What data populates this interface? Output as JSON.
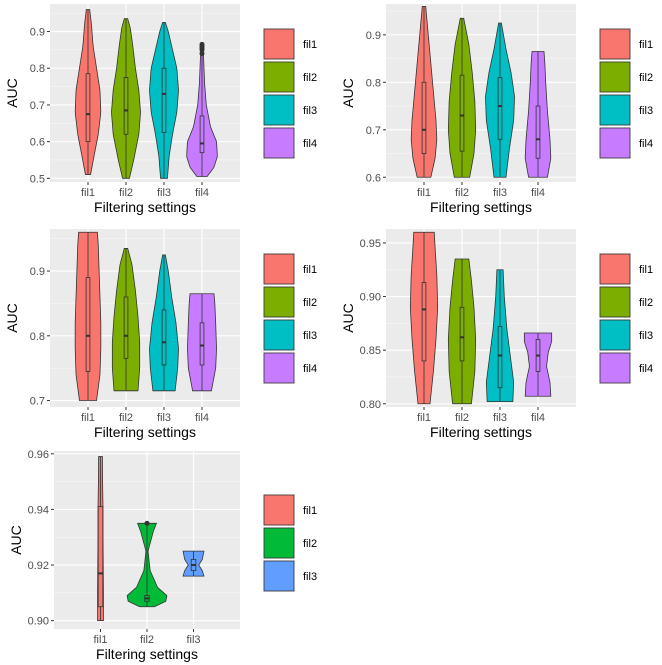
{
  "chart_data": [
    {
      "type": "violin",
      "xlabel": "Filtering settings",
      "ylabel": "AUC",
      "ylim": [
        0.49,
        0.975
      ],
      "yticks": [
        "0.5",
        "0.6",
        "0.7",
        "0.8",
        "0.9"
      ],
      "categories": [
        "fil1",
        "fil2",
        "fil3",
        "fil4"
      ],
      "legend": [
        "fil1",
        "fil2",
        "fil3",
        "fil4"
      ],
      "colors": [
        "#F8766D",
        "#7CAE00",
        "#00BFC4",
        "#C77CFF"
      ],
      "grid": true,
      "legend_position": "right",
      "series": [
        {
          "name": "fil1",
          "min": 0.51,
          "q1": 0.6,
          "median": 0.675,
          "q3": 0.785,
          "max": 0.96,
          "density": [
            [
              0.51,
              0.15
            ],
            [
              0.56,
              0.35
            ],
            [
              0.62,
              0.6
            ],
            [
              0.68,
              0.75
            ],
            [
              0.74,
              0.7
            ],
            [
              0.8,
              0.5
            ],
            [
              0.86,
              0.3
            ],
            [
              0.92,
              0.2
            ],
            [
              0.96,
              0.1
            ]
          ]
        },
        {
          "name": "fil2",
          "min": 0.5,
          "q1": 0.62,
          "median": 0.685,
          "q3": 0.775,
          "max": 0.935,
          "density": [
            [
              0.5,
              0.2
            ],
            [
              0.55,
              0.45
            ],
            [
              0.62,
              0.75
            ],
            [
              0.68,
              0.85
            ],
            [
              0.74,
              0.75
            ],
            [
              0.8,
              0.55
            ],
            [
              0.86,
              0.4
            ],
            [
              0.91,
              0.25
            ],
            [
              0.935,
              0.1
            ]
          ]
        },
        {
          "name": "fil3",
          "min": 0.5,
          "q1": 0.625,
          "median": 0.73,
          "q3": 0.8,
          "max": 0.925,
          "density": [
            [
              0.5,
              0.2
            ],
            [
              0.56,
              0.3
            ],
            [
              0.62,
              0.5
            ],
            [
              0.68,
              0.75
            ],
            [
              0.74,
              0.85
            ],
            [
              0.8,
              0.75
            ],
            [
              0.85,
              0.5
            ],
            [
              0.9,
              0.25
            ],
            [
              0.925,
              0.08
            ]
          ]
        },
        {
          "name": "fil4",
          "min": 0.505,
          "q1": 0.57,
          "median": 0.595,
          "q3": 0.67,
          "max": 0.865,
          "density": [
            [
              0.505,
              0.3
            ],
            [
              0.53,
              0.7
            ],
            [
              0.56,
              0.9
            ],
            [
              0.6,
              0.85
            ],
            [
              0.64,
              0.5
            ],
            [
              0.7,
              0.25
            ],
            [
              0.76,
              0.15
            ],
            [
              0.82,
              0.1
            ],
            [
              0.865,
              0.06
            ]
          ],
          "outliers": [
            0.84,
            0.85,
            0.855,
            0.86,
            0.865
          ]
        }
      ]
    },
    {
      "type": "violin",
      "xlabel": "Filtering settings",
      "ylabel": "AUC",
      "ylim": [
        0.59,
        0.965
      ],
      "yticks": [
        "0.6",
        "0.7",
        "0.8",
        "0.9"
      ],
      "categories": [
        "fil1",
        "fil2",
        "fil3",
        "fil4"
      ],
      "legend": [
        "fil1",
        "fil2",
        "fil3",
        "fil4"
      ],
      "colors": [
        "#F8766D",
        "#7CAE00",
        "#00BFC4",
        "#C77CFF"
      ],
      "grid": true,
      "legend_position": "right",
      "series": [
        {
          "name": "fil1",
          "min": 0.6,
          "q1": 0.65,
          "median": 0.7,
          "q3": 0.8,
          "max": 0.96,
          "density": [
            [
              0.6,
              0.4
            ],
            [
              0.64,
              0.65
            ],
            [
              0.68,
              0.75
            ],
            [
              0.72,
              0.7
            ],
            [
              0.78,
              0.55
            ],
            [
              0.84,
              0.4
            ],
            [
              0.9,
              0.25
            ],
            [
              0.96,
              0.1
            ]
          ]
        },
        {
          "name": "fil2",
          "min": 0.6,
          "q1": 0.655,
          "median": 0.73,
          "q3": 0.815,
          "max": 0.935,
          "density": [
            [
              0.6,
              0.45
            ],
            [
              0.65,
              0.7
            ],
            [
              0.7,
              0.8
            ],
            [
              0.76,
              0.75
            ],
            [
              0.82,
              0.6
            ],
            [
              0.88,
              0.4
            ],
            [
              0.935,
              0.1
            ]
          ]
        },
        {
          "name": "fil3",
          "min": 0.6,
          "q1": 0.68,
          "median": 0.75,
          "q3": 0.81,
          "max": 0.925,
          "density": [
            [
              0.6,
              0.35
            ],
            [
              0.66,
              0.55
            ],
            [
              0.72,
              0.8
            ],
            [
              0.77,
              0.85
            ],
            [
              0.82,
              0.65
            ],
            [
              0.87,
              0.35
            ],
            [
              0.925,
              0.08
            ]
          ]
        },
        {
          "name": "fil4",
          "min": 0.6,
          "q1": 0.64,
          "median": 0.68,
          "q3": 0.75,
          "max": 0.865,
          "density": [
            [
              0.6,
              0.55
            ],
            [
              0.64,
              0.75
            ],
            [
              0.68,
              0.7
            ],
            [
              0.74,
              0.55
            ],
            [
              0.8,
              0.45
            ],
            [
              0.84,
              0.4
            ],
            [
              0.865,
              0.35
            ]
          ]
        }
      ]
    },
    {
      "type": "violin",
      "xlabel": "Filtering settings",
      "ylabel": "AUC",
      "ylim": [
        0.69,
        0.965
      ],
      "yticks": [
        "0.7",
        "0.8",
        "0.9"
      ],
      "categories": [
        "fil1",
        "fil2",
        "fil3",
        "fil4"
      ],
      "legend": [
        "fil1",
        "fil2",
        "fil3",
        "fil4"
      ],
      "colors": [
        "#F8766D",
        "#7CAE00",
        "#00BFC4",
        "#C77CFF"
      ],
      "grid": true,
      "legend_position": "right",
      "series": [
        {
          "name": "fil1",
          "min": 0.7,
          "q1": 0.745,
          "median": 0.8,
          "q3": 0.89,
          "max": 0.96,
          "density": [
            [
              0.7,
              0.5
            ],
            [
              0.74,
              0.7
            ],
            [
              0.78,
              0.75
            ],
            [
              0.82,
              0.75
            ],
            [
              0.86,
              0.7
            ],
            [
              0.9,
              0.65
            ],
            [
              0.94,
              0.6
            ],
            [
              0.96,
              0.55
            ]
          ]
        },
        {
          "name": "fil2",
          "min": 0.715,
          "q1": 0.765,
          "median": 0.8,
          "q3": 0.86,
          "max": 0.935,
          "density": [
            [
              0.715,
              0.7
            ],
            [
              0.75,
              0.8
            ],
            [
              0.79,
              0.8
            ],
            [
              0.83,
              0.7
            ],
            [
              0.87,
              0.55
            ],
            [
              0.91,
              0.35
            ],
            [
              0.935,
              0.1
            ]
          ]
        },
        {
          "name": "fil3",
          "min": 0.715,
          "q1": 0.755,
          "median": 0.79,
          "q3": 0.84,
          "max": 0.925,
          "density": [
            [
              0.715,
              0.65
            ],
            [
              0.75,
              0.8
            ],
            [
              0.78,
              0.85
            ],
            [
              0.82,
              0.7
            ],
            [
              0.86,
              0.45
            ],
            [
              0.9,
              0.25
            ],
            [
              0.925,
              0.08
            ]
          ]
        },
        {
          "name": "fil4",
          "min": 0.715,
          "q1": 0.755,
          "median": 0.785,
          "q3": 0.82,
          "max": 0.865,
          "density": [
            [
              0.715,
              0.55
            ],
            [
              0.75,
              0.8
            ],
            [
              0.78,
              0.85
            ],
            [
              0.82,
              0.8
            ],
            [
              0.85,
              0.75
            ],
            [
              0.865,
              0.7
            ]
          ]
        }
      ]
    },
    {
      "type": "violin",
      "xlabel": "Filtering settings",
      "ylabel": "AUC",
      "ylim": [
        0.797,
        0.963
      ],
      "yticks": [
        "0.80",
        "0.85",
        "0.90",
        "0.95"
      ],
      "categories": [
        "fil1",
        "fil2",
        "fil3",
        "fil4"
      ],
      "legend": [
        "fil1",
        "fil2",
        "fil3",
        "fil4"
      ],
      "colors": [
        "#F8766D",
        "#7CAE00",
        "#00BFC4",
        "#C77CFF"
      ],
      "grid": true,
      "legend_position": "right",
      "series": [
        {
          "name": "fil1",
          "min": 0.8,
          "q1": 0.84,
          "median": 0.888,
          "q3": 0.913,
          "max": 0.96,
          "density": [
            [
              0.8,
              0.35
            ],
            [
              0.83,
              0.55
            ],
            [
              0.86,
              0.7
            ],
            [
              0.89,
              0.8
            ],
            [
              0.92,
              0.75
            ],
            [
              0.945,
              0.65
            ],
            [
              0.96,
              0.6
            ]
          ]
        },
        {
          "name": "fil2",
          "min": 0.8,
          "q1": 0.84,
          "median": 0.862,
          "q3": 0.89,
          "max": 0.935,
          "density": [
            [
              0.8,
              0.55
            ],
            [
              0.83,
              0.75
            ],
            [
              0.86,
              0.8
            ],
            [
              0.89,
              0.7
            ],
            [
              0.915,
              0.55
            ],
            [
              0.935,
              0.4
            ]
          ]
        },
        {
          "name": "fil3",
          "min": 0.802,
          "q1": 0.815,
          "median": 0.845,
          "q3": 0.872,
          "max": 0.925,
          "density": [
            [
              0.802,
              0.75
            ],
            [
              0.82,
              0.8
            ],
            [
              0.845,
              0.6
            ],
            [
              0.87,
              0.4
            ],
            [
              0.9,
              0.25
            ],
            [
              0.925,
              0.18
            ]
          ]
        },
        {
          "name": "fil4",
          "min": 0.807,
          "q1": 0.83,
          "median": 0.845,
          "q3": 0.86,
          "max": 0.866,
          "density": [
            [
              0.807,
              0.75
            ],
            [
              0.82,
              0.7
            ],
            [
              0.835,
              0.5
            ],
            [
              0.848,
              0.6
            ],
            [
              0.858,
              0.8
            ],
            [
              0.866,
              0.8
            ]
          ]
        }
      ]
    },
    {
      "type": "violin",
      "xlabel": "Filtering settings",
      "ylabel": "AUC",
      "ylim": [
        0.897,
        0.961
      ],
      "yticks": [
        "0.90",
        "0.92",
        "0.94",
        "0.96"
      ],
      "categories": [
        "fil1",
        "fil2",
        "fil3"
      ],
      "legend": [
        "fil1",
        "fil2",
        "fil3"
      ],
      "colors": [
        "#F8766D",
        "#00BA38",
        "#619CFF"
      ],
      "grid": true,
      "legend_position": "right",
      "series": [
        {
          "name": "fil1",
          "min": 0.9,
          "q1": 0.905,
          "median": 0.917,
          "q3": 0.941,
          "max": 0.959,
          "density": [
            [
              0.9,
              0.14
            ],
            [
              0.91,
              0.14
            ],
            [
              0.92,
              0.13
            ],
            [
              0.93,
              0.12
            ],
            [
              0.94,
              0.12
            ],
            [
              0.95,
              0.1
            ],
            [
              0.959,
              0.09
            ]
          ]
        },
        {
          "name": "fil2",
          "min": 0.905,
          "q1": 0.907,
          "median": 0.908,
          "q3": 0.909,
          "max": 0.935,
          "density": [
            [
              0.905,
              0.35
            ],
            [
              0.907,
              0.9
            ],
            [
              0.909,
              0.95
            ],
            [
              0.912,
              0.5
            ],
            [
              0.918,
              0.15
            ],
            [
              0.925,
              0.05
            ],
            [
              0.932,
              0.3
            ],
            [
              0.935,
              0.45
            ]
          ],
          "outliers": [
            0.935
          ]
        },
        {
          "name": "fil3",
          "min": 0.916,
          "q1": 0.918,
          "median": 0.92,
          "q3": 0.922,
          "max": 0.925,
          "density": [
            [
              0.916,
              0.5
            ],
            [
              0.918,
              0.42
            ],
            [
              0.92,
              0.25
            ],
            [
              0.922,
              0.42
            ],
            [
              0.925,
              0.5
            ]
          ]
        }
      ]
    }
  ]
}
